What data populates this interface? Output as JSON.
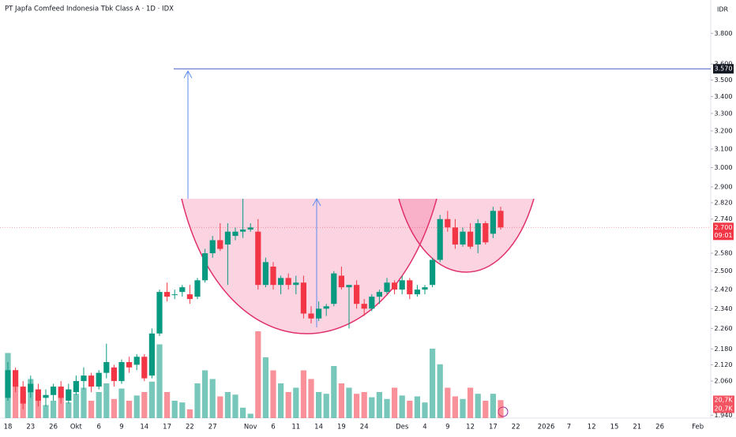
{
  "chart_data": {
    "type": "candlestick",
    "title": "PT Japfa Comfeed Indonesia Tbk Class A · 1D · IDX",
    "currency": "IDR",
    "log_scale": true,
    "up_color": "#089981",
    "down_color": "#f23645",
    "ylim": [
      1930,
      4030
    ],
    "yticks": [
      {
        "value": 3800,
        "label": "3.800"
      },
      {
        "value": 3600,
        "label": "3.600"
      },
      {
        "value": 3500,
        "label": "3.500"
      },
      {
        "value": 3400,
        "label": "3.400"
      },
      {
        "value": 3300,
        "label": "3.300"
      },
      {
        "value": 3200,
        "label": "3.200"
      },
      {
        "value": 3100,
        "label": "3.100"
      },
      {
        "value": 3000,
        "label": "3.000"
      },
      {
        "value": 2900,
        "label": "2.900"
      },
      {
        "value": 2820,
        "label": "2.820"
      },
      {
        "value": 2740,
        "label": "2.740"
      },
      {
        "value": 2580,
        "label": "2.580"
      },
      {
        "value": 2500,
        "label": "2.500"
      },
      {
        "value": 2420,
        "label": "2.420"
      },
      {
        "value": 2340,
        "label": "2.340"
      },
      {
        "value": 2260,
        "label": "2.260"
      },
      {
        "value": 2180,
        "label": "2.180"
      },
      {
        "value": 2120,
        "label": "2.120"
      },
      {
        "value": 2060,
        "label": "2.060"
      },
      {
        "value": 1940,
        "label": "1.940"
      }
    ],
    "volume_lim": [
      0,
      100
    ],
    "target_line": {
      "value": 3570,
      "label": "3.570"
    },
    "last_price": {
      "value": 2700,
      "label": "2.700",
      "countdown": "09:01"
    },
    "volume_labels": [
      "20,7K",
      "20,7K"
    ],
    "categories": [
      "18",
      null,
      null,
      "23",
      null,
      null,
      "26",
      null,
      null,
      "Okt",
      null,
      null,
      "6",
      null,
      null,
      "9",
      null,
      null,
      "14",
      null,
      null,
      "17",
      null,
      null,
      "22",
      null,
      null,
      "27",
      null,
      null,
      null,
      null,
      "Nov",
      null,
      null,
      "6",
      null,
      null,
      "11",
      null,
      null,
      "14",
      null,
      null,
      "19",
      null,
      null,
      "24",
      null,
      null,
      null,
      null,
      "Des",
      null,
      null,
      "4",
      null,
      null,
      "9",
      null,
      null,
      "12",
      null,
      null,
      "17",
      null,
      null,
      "22",
      null,
      null,
      null,
      "2026",
      null,
      null,
      "7",
      null,
      null,
      "12",
      null,
      null,
      "15",
      null,
      null,
      "21",
      null,
      null,
      "26",
      null,
      null,
      null,
      null,
      "Feb",
      null
    ],
    "open": [
      2000,
      2100,
      2040,
      2020,
      2030,
      2000,
      2010,
      2040,
      1990,
      2020,
      2060,
      2080,
      2040,
      2090,
      2110,
      2060,
      2130,
      2120,
      2150,
      2080,
      2240,
      2410,
      2400,
      2410,
      2400,
      2390,
      2460,
      2580,
      2640,
      2620,
      2660,
      2680,
      2690,
      2680,
      2440,
      2520,
      2440,
      2470,
      2440,
      2450,
      2320,
      2300,
      2340,
      2360,
      2480,
      2430,
      2440,
      2360,
      2340,
      2390,
      2410,
      2450,
      2420,
      2460,
      2400,
      2420,
      2440,
      2550,
      2740,
      2700,
      2620,
      2680,
      2620,
      2720,
      2670,
      2780,
      null,
      null,
      null,
      null,
      null,
      null,
      null,
      null,
      null,
      null,
      null,
      null,
      null,
      null,
      null,
      null,
      null,
      null,
      null,
      null,
      null,
      null,
      null,
      null,
      null,
      null,
      null
    ],
    "high": [
      2130,
      2110,
      2060,
      2080,
      2050,
      2030,
      2050,
      2060,
      2050,
      2080,
      2110,
      2090,
      2100,
      2200,
      2120,
      2140,
      2150,
      2160,
      2160,
      2260,
      2420,
      2450,
      2420,
      2440,
      2440,
      2470,
      2600,
      2660,
      2720,
      2720,
      2700,
      2840,
      2720,
      2740,
      2560,
      2540,
      2480,
      2490,
      2480,
      2480,
      2350,
      2370,
      2360,
      2500,
      2520,
      2440,
      2460,
      2380,
      2400,
      2420,
      2470,
      2460,
      2480,
      2470,
      2440,
      2440,
      2560,
      2760,
      2780,
      2740,
      2700,
      2720,
      2740,
      2730,
      2800,
      2800,
      null,
      null,
      null,
      null,
      null,
      null,
      null,
      null,
      null,
      null,
      null,
      null,
      null,
      null,
      null,
      null,
      null,
      null,
      null,
      null,
      null,
      null,
      null,
      null,
      null,
      null,
      null
    ],
    "low": [
      1990,
      2020,
      1960,
      2000,
      1970,
      1970,
      1990,
      1980,
      1980,
      2010,
      2030,
      2020,
      2030,
      2070,
      2040,
      2050,
      2090,
      2100,
      2060,
      2070,
      2230,
      2370,
      2380,
      2390,
      2360,
      2380,
      2450,
      2560,
      2590,
      2440,
      2640,
      2650,
      2680,
      2420,
      2430,
      2420,
      2400,
      2420,
      2400,
      2300,
      2280,
      2290,
      2310,
      2350,
      2420,
      2260,
      2340,
      2310,
      2330,
      2360,
      2400,
      2400,
      2400,
      2380,
      2390,
      2400,
      2430,
      2540,
      2680,
      2600,
      2610,
      2600,
      2580,
      2620,
      2650,
      2690,
      null,
      null,
      null,
      null,
      null,
      null,
      null,
      null,
      null,
      null,
      null,
      null,
      null,
      null,
      null,
      null,
      null,
      null,
      null,
      null,
      null,
      null,
      null,
      null,
      null,
      null,
      null
    ],
    "close": [
      2100,
      2040,
      1980,
      2050,
      1990,
      2010,
      2040,
      2000,
      2030,
      2060,
      2080,
      2040,
      2090,
      2130,
      2060,
      2130,
      2110,
      2150,
      2070,
      2240,
      2410,
      2390,
      2400,
      2430,
      2380,
      2460,
      2580,
      2640,
      2600,
      2680,
      2680,
      2690,
      2700,
      2440,
      2540,
      2440,
      2470,
      2440,
      2450,
      2320,
      2300,
      2340,
      2350,
      2490,
      2430,
      2440,
      2360,
      2340,
      2390,
      2410,
      2450,
      2420,
      2460,
      2400,
      2420,
      2430,
      2550,
      2740,
      2700,
      2620,
      2680,
      2610,
      2720,
      2630,
      2780,
      2700,
      null,
      null,
      null,
      null,
      null,
      null,
      null,
      null,
      null,
      null,
      null,
      null,
      null,
      null,
      null,
      null,
      null,
      null,
      null,
      null,
      null,
      null,
      null,
      null,
      null,
      null,
      null
    ],
    "volume": [
      75,
      40,
      30,
      45,
      25,
      15,
      20,
      25,
      18,
      28,
      35,
      20,
      30,
      40,
      22,
      34,
      20,
      26,
      30,
      42,
      85,
      30,
      20,
      18,
      10,
      40,
      55,
      45,
      25,
      30,
      27,
      12,
      5,
      100,
      70,
      55,
      40,
      30,
      35,
      55,
      45,
      30,
      28,
      60,
      40,
      35,
      28,
      30,
      24,
      30,
      22,
      35,
      26,
      20,
      25,
      18,
      80,
      62,
      35,
      25,
      22,
      35,
      28,
      20,
      28,
      20.7,
      null,
      null,
      null,
      null,
      null,
      null,
      null,
      null,
      null,
      null,
      null,
      null,
      null,
      null,
      null,
      null,
      null,
      null,
      null,
      null,
      null,
      null,
      null,
      null,
      null,
      null,
      null
    ]
  }
}
